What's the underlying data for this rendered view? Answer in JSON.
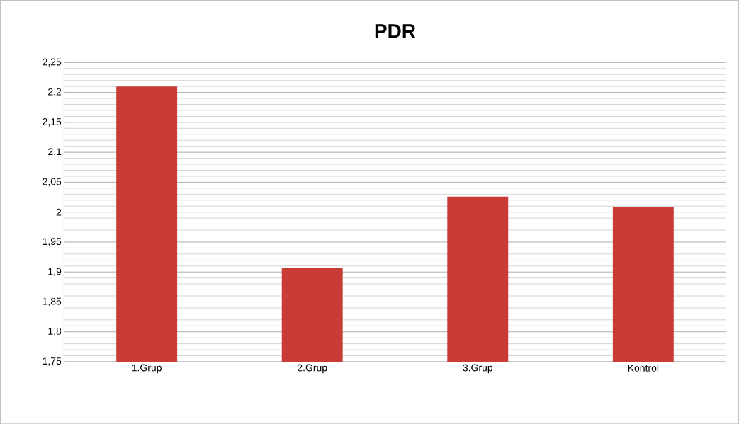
{
  "chart_data": {
    "type": "bar",
    "title": "PDR",
    "categories": [
      "1.Grup",
      "2.Grup",
      "3.Grup",
      "Kontrol"
    ],
    "values": [
      2.21,
      1.906,
      2.026,
      2.009
    ],
    "color": "#c83b37",
    "ylim": [
      1.75,
      2.25
    ],
    "yticks": [
      {
        "value": 1.75,
        "label": "1,75"
      },
      {
        "value": 1.8,
        "label": "1,8"
      },
      {
        "value": 1.85,
        "label": "1,85"
      },
      {
        "value": 1.9,
        "label": "1,9"
      },
      {
        "value": 1.95,
        "label": "1,95"
      },
      {
        "value": 2,
        "label": "2"
      },
      {
        "value": 2.05,
        "label": "2,05"
      },
      {
        "value": 2.1,
        "label": "2,1"
      },
      {
        "value": 2.15,
        "label": "2,15"
      },
      {
        "value": 2.2,
        "label": "2,2"
      },
      {
        "value": 2.25,
        "label": "2,25"
      }
    ],
    "grid": "y"
  }
}
